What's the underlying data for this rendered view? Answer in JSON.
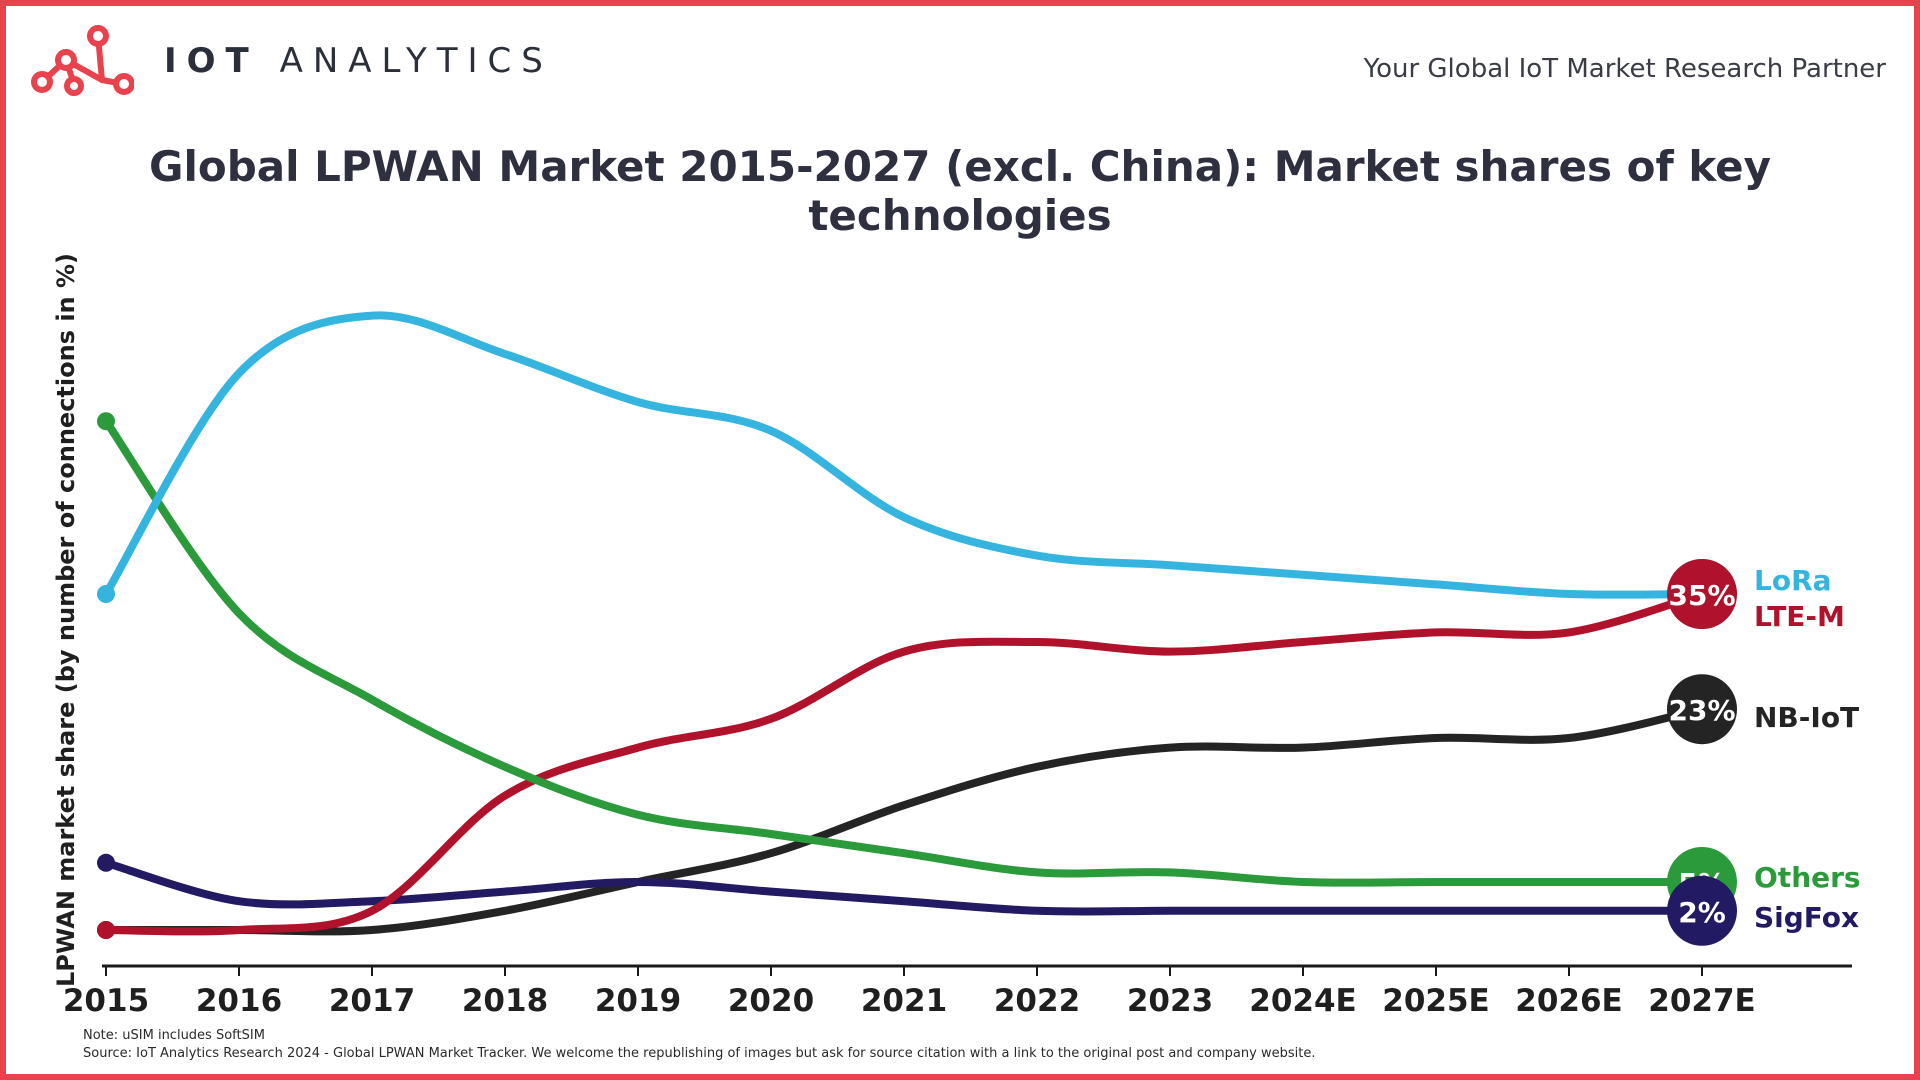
{
  "header": {
    "brand_bold": "IOT",
    "brand_light": "ANALYTICS",
    "tagline": "Your Global IoT Market Research Partner"
  },
  "colors": {
    "frame": "#e8434d",
    "LoRa": "#35b4e0",
    "LTE-M": "#b0122b",
    "NB-IoT": "#242424",
    "Others": "#2a9a3a",
    "SigFox": "#231a64"
  },
  "footer": {
    "note": "Note: uSIM includes SoftSIM",
    "source": "Source: IoT Analytics Research 2024 - Global LPWAN Market Tracker. We welcome the republishing of images but ask for source citation with a link to the original post and company website."
  },
  "chart_data": {
    "type": "line",
    "title": "Global LPWAN Market 2015-2027 (excl. China): Market shares of key technologies",
    "xlabel": "",
    "ylabel": "LPWAN market share (by number of connections in %)",
    "categories": [
      "2015",
      "2016",
      "2017",
      "2018",
      "2019",
      "2020",
      "2021",
      "2022",
      "2023",
      "2024E",
      "2025E",
      "2026E",
      "2027E"
    ],
    "ylim": [
      0,
      65
    ],
    "grid": false,
    "legend": "right-end labels",
    "series": [
      {
        "name": "LoRa",
        "values": [
          35,
          58,
          64,
          60,
          55,
          52,
          43,
          39,
          38,
          37,
          36,
          35,
          35
        ],
        "end_label": ""
      },
      {
        "name": "LTE-M",
        "values": [
          0,
          0,
          2,
          14,
          19,
          22,
          29,
          30,
          29,
          30,
          31,
          31,
          35
        ],
        "end_label": "35%"
      },
      {
        "name": "NB-IoT",
        "values": [
          0,
          0,
          0,
          2,
          5,
          8,
          13,
          17,
          19,
          19,
          20,
          20,
          23
        ],
        "end_label": "23%"
      },
      {
        "name": "Others",
        "values": [
          53,
          33,
          24,
          17,
          12,
          10,
          8,
          6,
          6,
          5,
          5,
          5,
          5
        ],
        "end_label": "5%"
      },
      {
        "name": "SigFox",
        "values": [
          7,
          3,
          3,
          4,
          5,
          4,
          3,
          2,
          2,
          2,
          2,
          2,
          2
        ],
        "end_label": "2%"
      }
    ]
  }
}
